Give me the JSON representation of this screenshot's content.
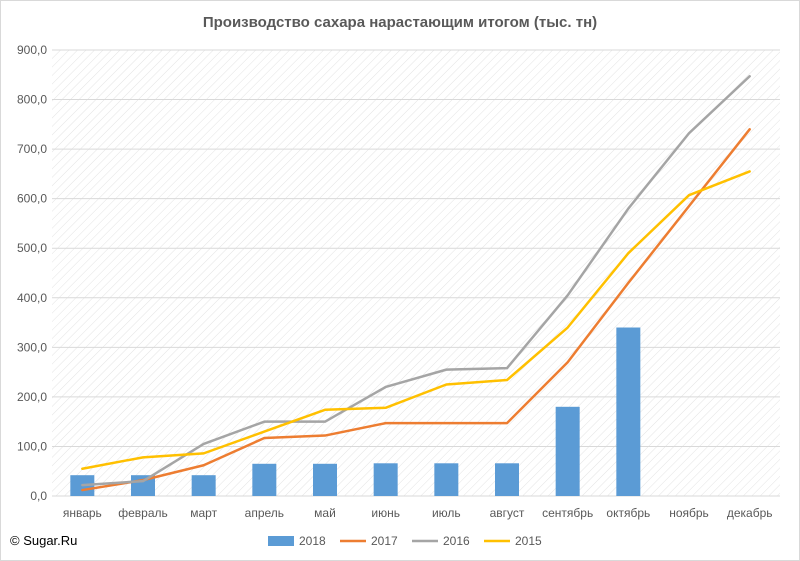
{
  "chart_data": {
    "type": "bar",
    "title": "Производство сахара нарастающим итогом (тыс. тн)",
    "categories": [
      "январь",
      "февраль",
      "март",
      "апрель",
      "май",
      "июнь",
      "июль",
      "август",
      "сентябрь",
      "октябрь",
      "ноябрь",
      "декабрь"
    ],
    "ylim": [
      0,
      900
    ],
    "yticks": [
      "0,0",
      "100,0",
      "200,0",
      "300,0",
      "400,0",
      "500,0",
      "600,0",
      "700,0",
      "800,0",
      "900,0"
    ],
    "grid": true,
    "legend_position": "bottom",
    "series": [
      {
        "name": "2018",
        "type": "bar",
        "color": "#5b9bd5",
        "values": [
          42,
          42,
          42,
          65,
          65,
          66,
          66,
          66,
          180,
          340,
          null,
          null
        ]
      },
      {
        "name": "2017",
        "type": "line",
        "color": "#ed7d31",
        "values": [
          12,
          32,
          62,
          117,
          122,
          147,
          147,
          147,
          270,
          430,
          585,
          740
        ]
      },
      {
        "name": "2016",
        "type": "line",
        "color": "#a5a5a5",
        "values": [
          22,
          30,
          105,
          150,
          150,
          220,
          255,
          258,
          405,
          580,
          732,
          847
        ]
      },
      {
        "name": "2015",
        "type": "line",
        "color": "#ffc000",
        "values": [
          55,
          78,
          86,
          130,
          174,
          178,
          225,
          234,
          340,
          490,
          607,
          655
        ]
      }
    ]
  },
  "credit": "© Sugar.Ru"
}
